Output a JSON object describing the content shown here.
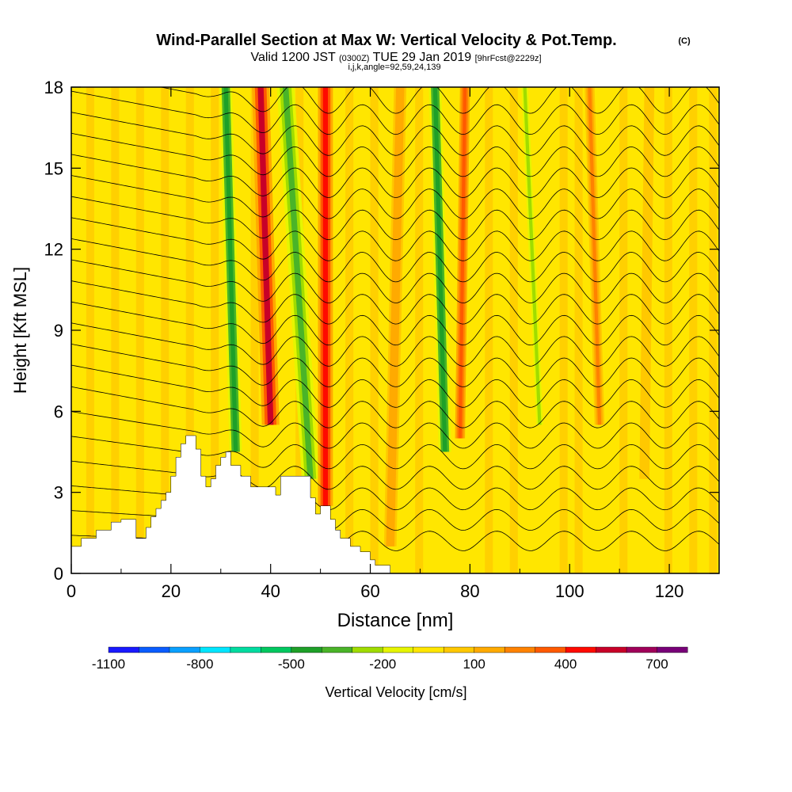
{
  "chart_data": {
    "type": "heatmap",
    "title": "Wind-Parallel Section at Max W: Vertical Velocity & Pot.Temp.",
    "title_units": "(C)",
    "subtitle": {
      "valid": "Valid 1200 JST",
      "utc": "(0300Z)",
      "date": "TUE 29 Jan 2019",
      "forecast": "[9hrFcst@2229z]"
    },
    "section_info": "i,j,k,angle=92,59,24,139",
    "xlabel": "Distance [nm]",
    "ylabel": "Height [Kft MSL]",
    "xlim": [
      0,
      130
    ],
    "ylim": [
      0,
      18
    ],
    "xticks": [
      0,
      20,
      40,
      60,
      80,
      100,
      120
    ],
    "yticks": [
      0,
      3,
      6,
      9,
      12,
      15,
      18
    ],
    "colorbar": {
      "label": "Vertical Velocity [cm/s]",
      "levels": [
        -1100,
        -1000,
        -900,
        -800,
        -700,
        -600,
        -500,
        -400,
        -300,
        -200,
        -100,
        0,
        100,
        200,
        300,
        400,
        500,
        600,
        700,
        800
      ],
      "tick_labels": [
        "-1100",
        "-800",
        "-500",
        "-200",
        "100",
        "400",
        "700"
      ],
      "colors": [
        "#1a1aff",
        "#0a5cff",
        "#0aa0ff",
        "#00e6ff",
        "#00dca0",
        "#00c860",
        "#1ea028",
        "#4ab428",
        "#a0dc00",
        "#e6f500",
        "#ffe600",
        "#ffc800",
        "#ffaa00",
        "#ff8200",
        "#ff5a00",
        "#ff0a00",
        "#c80028",
        "#a0005a",
        "#780078"
      ]
    },
    "terrain": {
      "x": [
        0,
        2,
        2,
        5,
        5,
        8,
        8,
        10,
        10,
        13,
        13,
        15,
        15,
        16,
        16,
        17,
        17,
        18,
        18,
        19,
        19,
        20,
        20,
        21,
        21,
        22,
        22,
        23,
        23,
        25,
        25,
        26,
        26,
        27,
        27,
        28,
        28,
        29,
        29,
        30,
        30,
        31,
        31,
        32,
        32,
        34,
        34,
        35,
        35,
        36,
        36,
        40,
        40,
        41,
        41,
        42,
        42,
        48,
        48,
        49,
        49,
        50,
        50,
        51,
        51,
        52,
        52,
        53,
        53,
        54,
        54,
        55,
        55,
        56,
        56,
        57,
        57,
        58,
        58,
        60,
        60,
        61,
        61,
        64,
        64,
        65,
        65,
        130
      ],
      "height": [
        1.0,
        1.0,
        1.3,
        1.3,
        1.6,
        1.6,
        1.9,
        1.9,
        2.0,
        2.0,
        1.3,
        1.3,
        1.7,
        1.7,
        2.1,
        2.1,
        2.4,
        2.4,
        2.7,
        2.7,
        3.0,
        3.0,
        3.6,
        3.6,
        4.3,
        4.3,
        4.8,
        4.8,
        5.1,
        5.1,
        4.6,
        4.6,
        3.6,
        3.6,
        3.2,
        3.2,
        3.5,
        3.5,
        4.0,
        4.0,
        4.3,
        4.3,
        4.5,
        4.5,
        4.0,
        4.0,
        3.6,
        3.6,
        3.6,
        3.6,
        3.2,
        3.2,
        3.2,
        3.2,
        2.9,
        2.9,
        3.6,
        3.6,
        2.8,
        2.8,
        2.2,
        2.2,
        2.5,
        2.5,
        2.5,
        2.5,
        2.0,
        2.0,
        1.6,
        1.6,
        1.3,
        1.3,
        1.3,
        1.3,
        1.0,
        1.0,
        1.0,
        1.0,
        0.8,
        0.8,
        0.5,
        0.5,
        0.3,
        0.3,
        0.0,
        0.0,
        0.0
      ]
    },
    "velocity_bands": [
      {
        "x_base": 33.0,
        "x_top": 31.0,
        "h_bottom": 4.5,
        "h_top": 18,
        "width": 2.5,
        "value": -450
      },
      {
        "x_base": 40.0,
        "x_top": 38.0,
        "h_bottom": 5.5,
        "h_top": 18,
        "width": 3.5,
        "value": 500
      },
      {
        "x_base": 48.0,
        "x_top": 43.0,
        "h_bottom": 3.5,
        "h_top": 18,
        "width": 3.5,
        "value": -400
      },
      {
        "x_base": 51.0,
        "x_top": 51.0,
        "h_bottom": 2.5,
        "h_top": 18,
        "width": 3.0,
        "value": 450
      },
      {
        "x_base": 64.0,
        "x_top": 66.0,
        "h_bottom": 1.0,
        "h_top": 18,
        "width": 2.5,
        "value": 150
      },
      {
        "x_base": 75.0,
        "x_top": 73.0,
        "h_bottom": 4.5,
        "h_top": 18,
        "width": 2.5,
        "value": -450
      },
      {
        "x_base": 78.0,
        "x_top": 79.0,
        "h_bottom": 5.0,
        "h_top": 18,
        "width": 2.0,
        "value": 300
      },
      {
        "x_base": 94.0,
        "x_top": 91.0,
        "h_bottom": 5.5,
        "h_top": 18,
        "width": 2.0,
        "value": -250
      },
      {
        "x_base": 106.0,
        "x_top": 104.0,
        "h_bottom": 5.5,
        "h_top": 18,
        "width": 2.0,
        "value": 250
      },
      {
        "x_base": 115.0,
        "x_top": 116.0,
        "h_bottom": 3.5,
        "h_top": 18,
        "width": 2.0,
        "value": 80
      }
    ],
    "theta_contour_levels": [
      -4,
      -2,
      0,
      2,
      4,
      6,
      8,
      10,
      12,
      14,
      16,
      18,
      20,
      22,
      24,
      26,
      28,
      30,
      32,
      34,
      36,
      38
    ]
  }
}
